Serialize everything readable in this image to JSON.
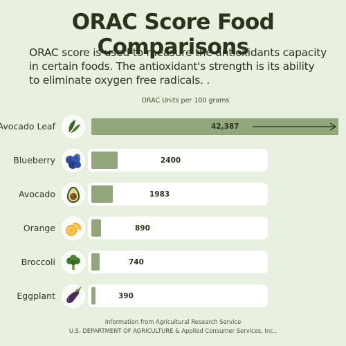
{
  "title": "ORAC Score Food Comparisons",
  "subtitle": "ORAC score is used to measure the antioxidants capacity in certain foods. The antioxidant's strength is its ability to eliminate oxygen free radicals. .",
  "footer": {
    "line1": "Information from Agricultural Research Service",
    "line2": "U.S. DEPARTMENT OF AGRICULTURE & Applied Consumer Services, Inc.."
  },
  "colors": {
    "background": "#e8f1df",
    "bar": "#91a67a",
    "track": "#ffffff"
  },
  "chart_data": {
    "type": "bar",
    "orientation": "horizontal",
    "unit_label": "ORAC Units per 100 grams",
    "categories": [
      "Avocado Leaf",
      "Blueberry",
      "Avocado",
      "Orange",
      "Broccoli",
      "Eggplant"
    ],
    "values": [
      42387,
      2400,
      1983,
      890,
      740,
      390
    ],
    "value_labels": [
      "42,387",
      "2400",
      "1983",
      "890",
      "740",
      "390"
    ],
    "icons": [
      "leaf-icon",
      "blueberry-icon",
      "avocado-icon",
      "orange-slice-icon",
      "broccoli-icon",
      "eggplant-icon"
    ],
    "axis_break": true,
    "axis_break_note": "Avocado Leaf bar extends beyond the chart (arrow)"
  }
}
